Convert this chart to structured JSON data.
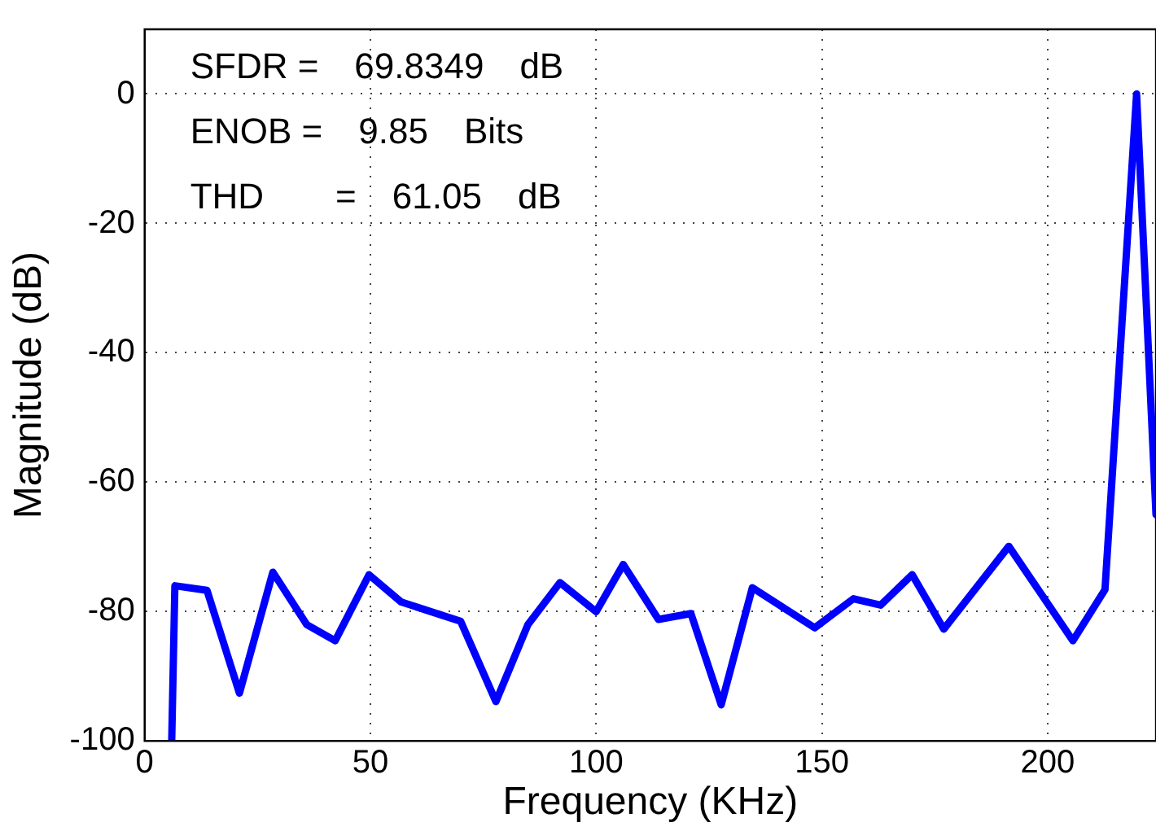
{
  "chart_data": {
    "type": "line",
    "xlabel": "Frequency (KHz)",
    "ylabel": "Magnitude (dB)",
    "annotations": [
      "SFDR =  69.8349  dB",
      "ENOB =  9.85  Bits",
      "THD    =  61.05  dB"
    ],
    "x": [
      6,
      6.7,
      13.8,
      21,
      28.4,
      35.9,
      42.2,
      49.7,
      56.8,
      70,
      77.8,
      84.9,
      92,
      100,
      106,
      113.8,
      121,
      127.7,
      134.6,
      148.4,
      157,
      163,
      170,
      177,
      191.4,
      205.6,
      212.7,
      219.7,
      224
    ],
    "series": [
      {
        "color": "#0000ff",
        "values": [
          -100,
          -76,
          -76.7,
          -92.6,
          -73.9,
          -82,
          -84.5,
          -74.3,
          -78.5,
          -81.5,
          -93.9,
          -82,
          -75.5,
          -80,
          -72.7,
          -81.2,
          -80.3,
          -94.4,
          -76.3,
          -82.5,
          -78,
          -79,
          -74.3,
          -82.7,
          -69.9,
          -84.5,
          -76.6,
          0,
          -65
        ]
      }
    ],
    "xlim": [
      0,
      224
    ],
    "xticks": [
      0,
      50,
      100,
      150,
      200
    ],
    "ylim": [
      -100,
      10
    ],
    "yticks": [
      -100,
      -80,
      -60,
      -40,
      -20,
      0
    ],
    "grid": true,
    "legend": false,
    "marker": "none",
    "line_style": "solid"
  }
}
